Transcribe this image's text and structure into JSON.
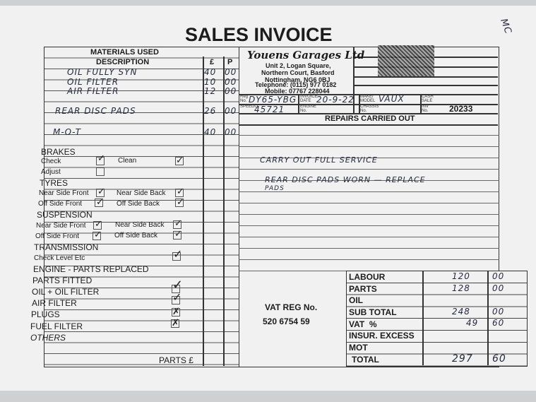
{
  "title": "SALES INVOICE",
  "corner_note": "MC",
  "company": {
    "name": "Youens Garages Ltd",
    "address": [
      "Unit 2, Logan Square,",
      "Northern Court, Basford",
      "Nottingham, NG6 0BJ"
    ],
    "telephone": "Telephone: (0115) 977 0182",
    "mobile": "Mobile: 07767 228044"
  },
  "materials": {
    "header": "MATERIALS USED",
    "description": "DESCRIPTION",
    "pounds": "£",
    "pence": "P",
    "items": [
      {
        "desc": "OIL FULLY SYN",
        "pounds": "40",
        "pence": "00"
      },
      {
        "desc": "OIL FILTER",
        "pounds": "10",
        "pence": "00"
      },
      {
        "desc": "AIR FILTER",
        "pounds": "12",
        "pence": "00"
      },
      {
        "desc": "REAR DISC PADS",
        "pounds": "26",
        "pence": "00"
      },
      {
        "desc": "M-O-T",
        "pounds": "40",
        "pence": "00"
      }
    ]
  },
  "checks": {
    "brakes": {
      "label": "BRAKES",
      "check": "Check",
      "clean": "Clean",
      "adjust": "Adjust"
    },
    "tyres": {
      "label": "TYRES",
      "nsf": "Near Side Front",
      "nsb": "Near Side Back",
      "osf": "Off Side Front",
      "osb": "Off Side Back"
    },
    "suspension": {
      "label": "SUSPENSION",
      "nsf": "Near Side Front",
      "nsb": "Near Side Back",
      "osf": "Off Side Front",
      "osb": "Off Side Back"
    },
    "transmission": {
      "label": "TRANSMISSION",
      "check": "Check Level Etc"
    },
    "engine": {
      "label": "ENGINE - PARTS REPLACED",
      "parts_fitted": "PARTS FITTED",
      "oil": "OIL + OIL FILTER",
      "air": "AIR FILTER",
      "plugs": "PLUGS",
      "fuel": "FUEL FILTER",
      "others": "OTHERS"
    },
    "tick": "✓",
    "cross": "✗"
  },
  "parts_total_label": "PARTS £",
  "vehicle": {
    "reg_label": "Reg No.",
    "reg": "DY65-YBG",
    "date_label": "INVOICE DATE",
    "date": "20-9-22",
    "make_label": "MAKE/ MODEL",
    "make": "VAUX",
    "cash_label": "CASH SALE",
    "speedo_label": "SPEEDO",
    "speedo": "45721",
    "engine_label": "ENGINE No.",
    "chassis_label": "CHASSIS No.",
    "inv_label": "INV No.",
    "inv": "20233"
  },
  "repairs": {
    "header": "REPAIRS CARRIED OUT",
    "lines": [
      "CARRY OUT FULL SERVICE",
      "REAR DISC PADS WORN — REPLACE",
      "PADS"
    ]
  },
  "vat_reg": {
    "label": "VAT REG No.",
    "number": "520 6754 59"
  },
  "totals": [
    {
      "label": "LABOUR",
      "pounds": "120",
      "pence": "00"
    },
    {
      "label": "PARTS",
      "pounds": "128",
      "pence": "00"
    },
    {
      "label": "OIL",
      "pounds": "",
      "pence": ""
    },
    {
      "label": "SUB TOTAL",
      "pounds": "248",
      "pence": "00"
    },
    {
      "label": "VAT  %",
      "pounds": "49",
      "pence": "60"
    },
    {
      "label": "INSUR. EXCESS",
      "pounds": "",
      "pence": ""
    },
    {
      "label": "MOT",
      "pounds": "",
      "pence": ""
    },
    {
      "label": "TOTAL",
      "pounds": "297",
      "pence": "60"
    }
  ]
}
